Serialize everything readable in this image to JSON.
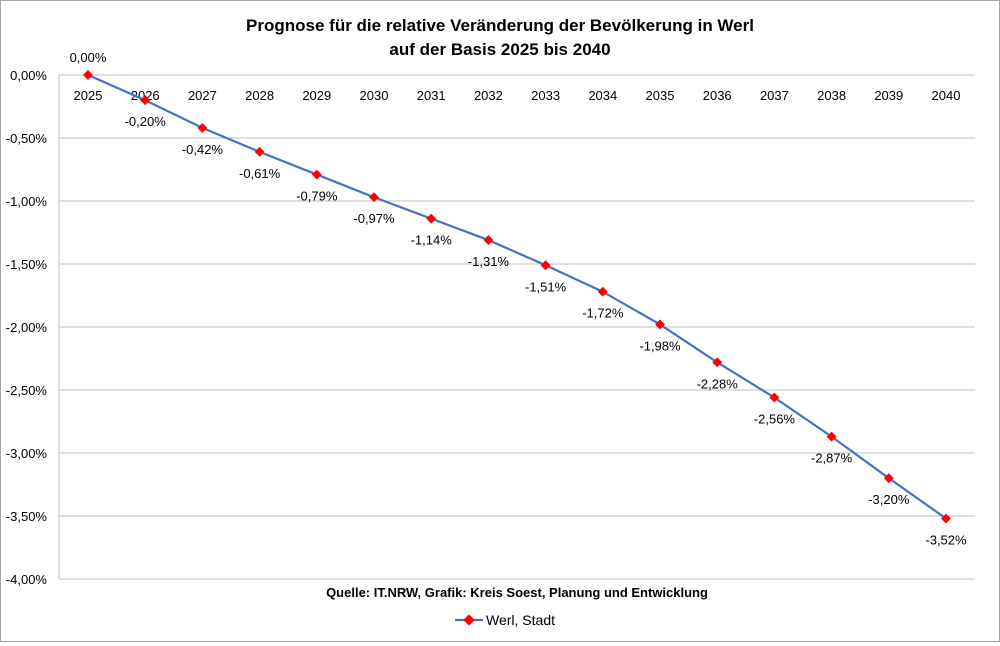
{
  "chart_data": {
    "type": "line",
    "title_line1": "Prognose für die relative Veränderung der Bevölkerung in Werl",
    "title_line2": "auf der Basis 2025 bis 2040",
    "source": "Quelle: IT.NRW, Grafik: Kreis Soest, Planung und Entwicklung",
    "categories": [
      "2025",
      "2026",
      "2027",
      "2028",
      "2029",
      "2030",
      "2031",
      "2032",
      "2033",
      "2034",
      "2035",
      "2036",
      "2037",
      "2038",
      "2039",
      "2040"
    ],
    "series": [
      {
        "name": "Werl, Stadt",
        "values": [
          0.0,
          -0.2,
          -0.42,
          -0.61,
          -0.79,
          -0.97,
          -1.14,
          -1.31,
          -1.51,
          -1.72,
          -1.98,
          -2.28,
          -2.56,
          -2.87,
          -3.2,
          -3.52
        ]
      }
    ],
    "data_labels": [
      "0,00%",
      "-0,20%",
      "-0,42%",
      "-0,61%",
      "-0,79%",
      "-0,97%",
      "-1,14%",
      "-1,31%",
      "-1,51%",
      "-1,72%",
      "-1,98%",
      "-2,28%",
      "-2,56%",
      "-2,87%",
      "-3,20%",
      "-3,52%"
    ],
    "y_ticks": [
      "0,00%",
      "-0,50%",
      "-1,00%",
      "-1,50%",
      "-2,00%",
      "-2,50%",
      "-3,00%",
      "-3,50%",
      "-4,00%"
    ],
    "ylim": [
      -4,
      0
    ],
    "grid": true,
    "legend_position": "bottom",
    "colors": {
      "line": "#4472c4",
      "marker": "#ff0000",
      "grid": "#bfbfbf"
    }
  }
}
